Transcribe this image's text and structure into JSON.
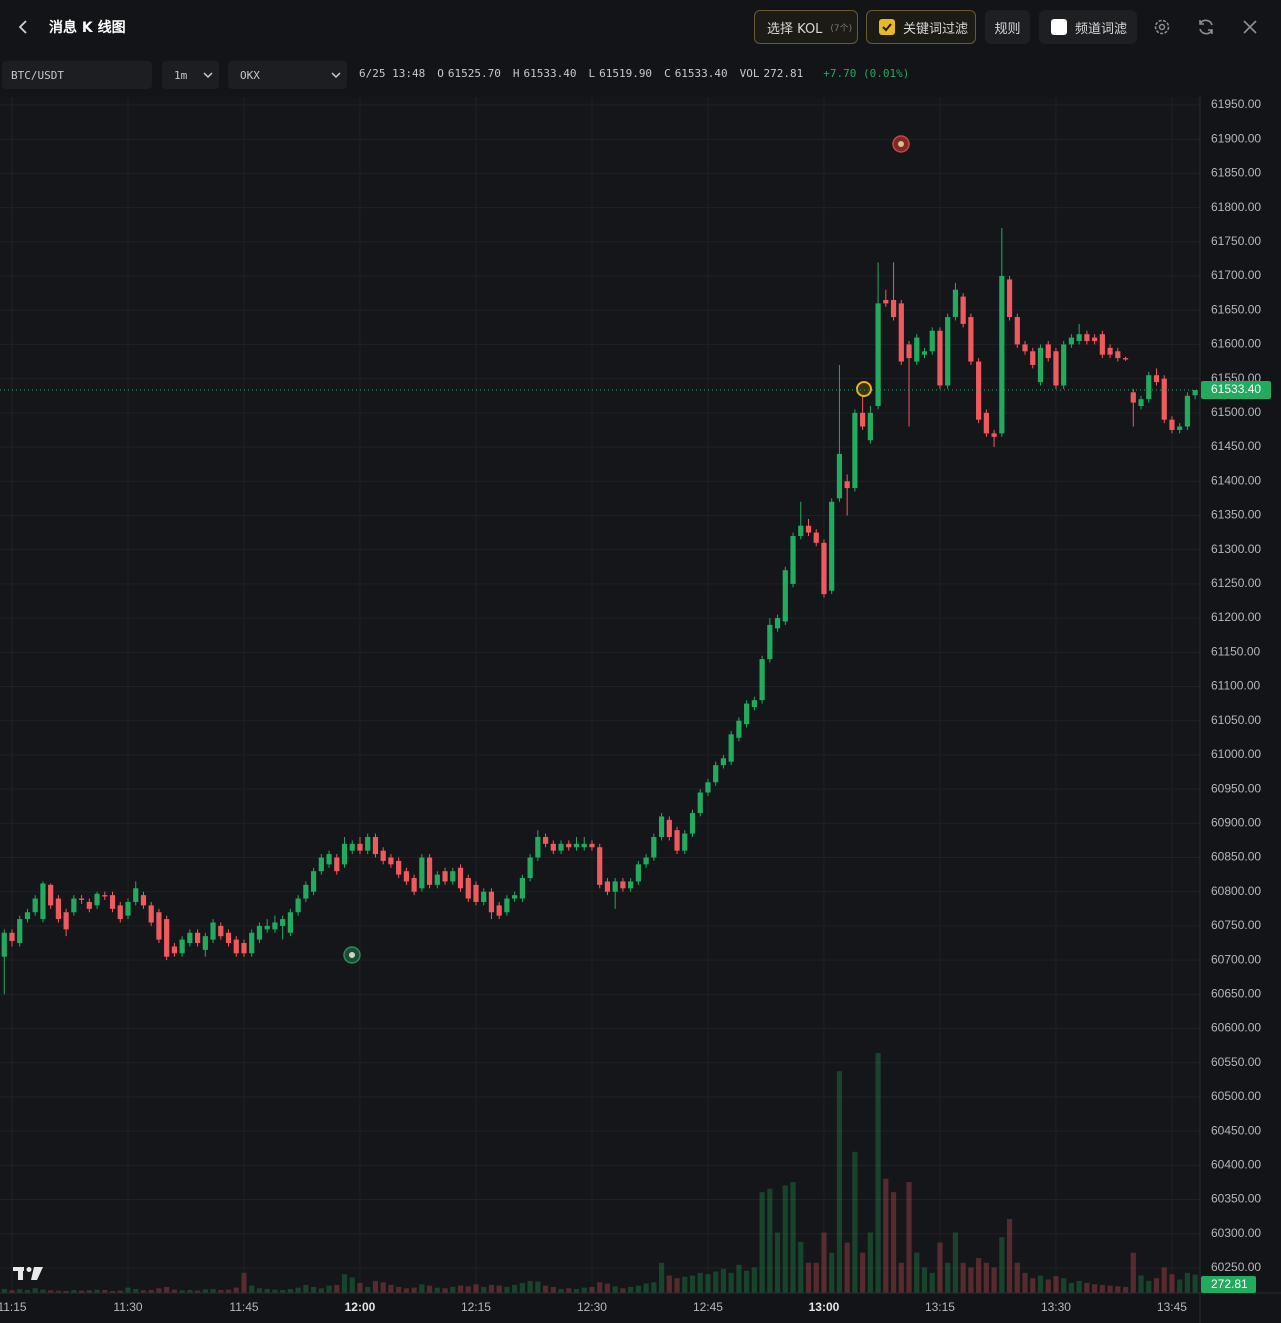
{
  "header": {
    "title": "消息 K 线图",
    "kol_button": "选择 KOL",
    "kol_count": "(7个)",
    "keyword_filter": "关键词过滤",
    "rules": "规则",
    "channel_filter": "频道词滤"
  },
  "toolbar": {
    "symbol": "BTC/USDT",
    "interval": "1m",
    "exchange": "OKX",
    "datetime": "6/25 13:48",
    "ohlc": [
      {
        "label": "O",
        "value": "61525.70"
      },
      {
        "label": "H",
        "value": "61533.40"
      },
      {
        "label": "L",
        "value": "61519.90"
      },
      {
        "label": "C",
        "value": "61533.40"
      },
      {
        "label": "VOL",
        "value": "272.81"
      }
    ],
    "change": "+7.70 (0.01%)"
  },
  "chart_data": {
    "type": "candlestick",
    "up_color": "#22ab5e",
    "down_color": "#ef5a5f",
    "grid": true,
    "x": [
      "11:14",
      "11:15",
      "11:16",
      "11:17",
      "11:18",
      "11:19",
      "11:20",
      "11:21",
      "11:22",
      "11:23",
      "11:24",
      "11:25",
      "11:26",
      "11:27",
      "11:28",
      "11:29",
      "11:30",
      "11:31",
      "11:32",
      "11:33",
      "11:34",
      "11:35",
      "11:36",
      "11:37",
      "11:38",
      "11:39",
      "11:40",
      "11:41",
      "11:42",
      "11:43",
      "11:44",
      "11:45",
      "11:46",
      "11:47",
      "11:48",
      "11:49",
      "11:50",
      "11:51",
      "11:52",
      "11:53",
      "11:54",
      "11:55",
      "11:56",
      "11:57",
      "11:58",
      "11:59",
      "12:00",
      "12:01",
      "12:02",
      "12:03",
      "12:04",
      "12:05",
      "12:06",
      "12:07",
      "12:08",
      "12:09",
      "12:10",
      "12:11",
      "12:12",
      "12:13",
      "12:14",
      "12:15",
      "12:16",
      "12:17",
      "12:18",
      "12:19",
      "12:20",
      "12:21",
      "12:22",
      "12:23",
      "12:24",
      "12:25",
      "12:26",
      "12:27",
      "12:28",
      "12:29",
      "12:30",
      "12:31",
      "12:32",
      "12:33",
      "12:34",
      "12:35",
      "12:36",
      "12:37",
      "12:38",
      "12:39",
      "12:40",
      "12:41",
      "12:42",
      "12:43",
      "12:44",
      "12:45",
      "12:46",
      "12:47",
      "12:48",
      "12:49",
      "12:50",
      "12:51",
      "12:52",
      "12:53",
      "12:54",
      "12:55",
      "12:56",
      "12:57",
      "12:58",
      "12:59",
      "13:00",
      "13:01",
      "13:02",
      "13:03",
      "13:04",
      "13:05",
      "13:06",
      "13:07",
      "13:08",
      "13:09",
      "13:10",
      "13:11",
      "13:12",
      "13:13",
      "13:14",
      "13:15",
      "13:16",
      "13:17",
      "13:18",
      "13:19",
      "13:20",
      "13:21",
      "13:22",
      "13:23",
      "13:24",
      "13:25",
      "13:26",
      "13:27",
      "13:28",
      "13:29",
      "13:30",
      "13:31",
      "13:32",
      "13:33",
      "13:34",
      "13:35",
      "13:36",
      "13:37",
      "13:38",
      "13:39",
      "13:40",
      "13:41",
      "13:42",
      "13:43",
      "13:44",
      "13:45",
      "13:46",
      "13:47",
      "13:48"
    ],
    "open": [
      60705,
      60740,
      60725,
      60760,
      60770,
      60760,
      60810,
      60790,
      60770,
      60770,
      60790,
      60785,
      60780,
      60795,
      60795,
      60780,
      60765,
      60785,
      60795,
      60780,
      60770,
      60760,
      60720,
      60710,
      60725,
      60740,
      60715,
      60730,
      60750,
      60740,
      60730,
      60725,
      60710,
      60730,
      60745,
      60745,
      60750,
      60740,
      60770,
      60790,
      60800,
      60830,
      60840,
      60850,
      60840,
      60860,
      60870,
      60860,
      60880,
      60860,
      60850,
      60845,
      60830,
      60820,
      60805,
      60850,
      60810,
      60830,
      60815,
      60835,
      60820,
      60810,
      60785,
      60800,
      60780,
      60770,
      60790,
      60790,
      60820,
      60850,
      60880,
      60870,
      60860,
      60870,
      60865,
      60865,
      60870,
      60865,
      60815,
      60800,
      60815,
      60805,
      60815,
      60840,
      60850,
      60880,
      60905,
      60890,
      60860,
      60885,
      60915,
      60945,
      60960,
      60985,
      60990,
      61025,
      61045,
      61070,
      61080,
      61140,
      61185,
      61195,
      61250,
      61320,
      61335,
      61325,
      61310,
      61240,
      61375,
      61400,
      61390,
      61500,
      61460,
      61510,
      61665,
      61665,
      61660,
      61600,
      61575,
      61585,
      61590,
      61620,
      61540,
      61640,
      61670,
      61640,
      61575,
      61500,
      61470,
      61470,
      61695,
      61640,
      61600,
      61590,
      61545,
      61600,
      61590,
      61540,
      61600,
      61605,
      61615,
      61610,
      61615,
      61595,
      61590,
      61580,
      61530,
      61510,
      61520,
      61555,
      61550,
      61490,
      61475,
      61480,
      61525.7
    ],
    "high": [
      60745,
      60745,
      60765,
      60775,
      60795,
      60815,
      60812,
      60795,
      60775,
      60795,
      60795,
      60790,
      60800,
      60800,
      60800,
      60785,
      60790,
      60815,
      60800,
      60785,
      60775,
      60765,
      60725,
      60735,
      60745,
      60745,
      60740,
      60760,
      60755,
      60745,
      60735,
      60730,
      60745,
      60755,
      60760,
      60765,
      60765,
      60775,
      60795,
      60815,
      60835,
      60855,
      60860,
      60855,
      60880,
      60875,
      60880,
      60885,
      60885,
      60865,
      60855,
      60850,
      60835,
      60825,
      60855,
      60855,
      60830,
      60835,
      60835,
      60840,
      60825,
      60815,
      60805,
      60805,
      60785,
      60795,
      60800,
      60825,
      60855,
      60890,
      60885,
      60875,
      60875,
      60875,
      60880,
      60880,
      60875,
      60870,
      60820,
      60820,
      60820,
      60820,
      60845,
      60855,
      60885,
      60915,
      60910,
      60895,
      60890,
      60920,
      60950,
      60965,
      60990,
      61000,
      61035,
      61055,
      61080,
      61085,
      61145,
      61200,
      61205,
      61275,
      61325,
      61370,
      61345,
      61330,
      61315,
      61375,
      61570,
      61410,
      61505,
      61530,
      61510,
      61720,
      61680,
      61720,
      61665,
      61605,
      61615,
      61595,
      61625,
      61625,
      61645,
      61690,
      61675,
      61645,
      61580,
      61505,
      61475,
      61770,
      61700,
      61645,
      61605,
      61595,
      61600,
      61605,
      61595,
      61605,
      61615,
      61630,
      61620,
      61615,
      61620,
      61600,
      61595,
      61582,
      61535,
      61525,
      61560,
      61565,
      61555,
      61495,
      61485,
      61530,
      61533.4
    ],
    "low": [
      60650,
      60720,
      60720,
      60755,
      60765,
      60755,
      60775,
      60755,
      60735,
      60765,
      60782,
      60770,
      60775,
      60788,
      60770,
      60755,
      60760,
      60780,
      60775,
      60750,
      60725,
      60700,
      60705,
      60705,
      60720,
      60720,
      60705,
      60725,
      60730,
      60720,
      60705,
      60705,
      60705,
      60725,
      60740,
      60740,
      60730,
      60735,
      60765,
      60785,
      60795,
      60825,
      60835,
      60825,
      60835,
      60855,
      60855,
      60855,
      60850,
      60840,
      60835,
      60820,
      60810,
      60795,
      60800,
      60805,
      60805,
      60810,
      60810,
      60800,
      60785,
      60780,
      60780,
      60760,
      60760,
      60765,
      60785,
      60785,
      60815,
      60845,
      60865,
      60855,
      60855,
      60860,
      60860,
      60860,
      60860,
      60805,
      60795,
      60775,
      60800,
      60800,
      60810,
      60835,
      60845,
      60875,
      60875,
      60855,
      60855,
      60880,
      60910,
      60940,
      60955,
      60980,
      60985,
      61020,
      61040,
      61065,
      61075,
      61135,
      61180,
      61190,
      61245,
      61315,
      61320,
      61305,
      61230,
      61235,
      61370,
      61350,
      61385,
      61475,
      61455,
      61505,
      61655,
      61635,
      61570,
      61480,
      61570,
      61580,
      61585,
      61535,
      61535,
      61635,
      61625,
      61570,
      61485,
      61465,
      61450,
      61465,
      61635,
      61595,
      61585,
      61565,
      61540,
      61575,
      61535,
      61535,
      61595,
      61600,
      61600,
      61600,
      61580,
      61580,
      61575,
      61576,
      61480,
      61505,
      61515,
      61540,
      61485,
      61470,
      61470,
      61475,
      61519.9
    ],
    "close": [
      60740,
      60728,
      60760,
      60770,
      60790,
      60812,
      60780,
      60760,
      60745,
      60790,
      60788,
      60775,
      60797,
      60793,
      60775,
      60760,
      60785,
      60805,
      60780,
      60755,
      60730,
      60705,
      60710,
      60730,
      60740,
      60725,
      60735,
      60755,
      60735,
      60725,
      60710,
      60710,
      60740,
      60750,
      60750,
      60755,
      60760,
      60770,
      60790,
      60810,
      60830,
      60850,
      60855,
      60830,
      60870,
      60870,
      60860,
      60880,
      60855,
      60845,
      60840,
      60825,
      60815,
      60800,
      60850,
      60810,
      60825,
      60815,
      60830,
      60805,
      60790,
      60785,
      60800,
      60770,
      60765,
      60790,
      60795,
      60820,
      60850,
      60880,
      60870,
      60860,
      60870,
      60865,
      60870,
      60870,
      60865,
      60810,
      60800,
      60815,
      60805,
      60815,
      60840,
      60850,
      60880,
      60910,
      60880,
      60860,
      60885,
      60915,
      60945,
      60960,
      60985,
      60995,
      61030,
      61050,
      61075,
      61080,
      61140,
      61190,
      61200,
      61270,
      61320,
      61335,
      61325,
      61310,
      61235,
      61370,
      61440,
      61390,
      61500,
      61480,
      61500,
      61660,
      61660,
      61640,
      61575,
      61580,
      61610,
      61590,
      61620,
      61540,
      61640,
      61680,
      61630,
      61575,
      61490,
      61470,
      61465,
      61700,
      61640,
      61600,
      61590,
      61570,
      61595,
      61580,
      61540,
      61600,
      61610,
      61615,
      61605,
      61605,
      61585,
      61585,
      61580,
      61578,
      61515,
      61520,
      61555,
      61545,
      61490,
      61475,
      61480,
      61525,
      61533.4
    ],
    "volume": [
      60,
      40,
      55,
      45,
      70,
      50,
      40,
      35,
      30,
      45,
      35,
      40,
      50,
      45,
      30,
      35,
      80,
      60,
      40,
      45,
      70,
      90,
      50,
      40,
      45,
      35,
      55,
      60,
      45,
      50,
      80,
      300,
      110,
      70,
      60,
      50,
      45,
      60,
      80,
      120,
      90,
      70,
      110,
      120,
      280,
      230,
      150,
      90,
      180,
      160,
      120,
      90,
      70,
      80,
      130,
      110,
      80,
      70,
      90,
      110,
      100,
      130,
      90,
      120,
      110,
      90,
      120,
      150,
      180,
      170,
      110,
      90,
      60,
      70,
      60,
      80,
      90,
      160,
      140,
      100,
      70,
      90,
      110,
      140,
      160,
      450,
      260,
      220,
      240,
      260,
      300,
      280,
      320,
      360,
      300,
      420,
      330,
      380,
      1500,
      1550,
      900,
      1600,
      1650,
      760,
      450,
      450,
      900,
      600,
      3300,
      750,
      2100,
      600,
      900,
      3570,
      1700,
      1500,
      450,
      1650,
      600,
      380,
      300,
      750,
      450,
      900,
      450,
      380,
      520,
      450,
      380,
      830,
      1100,
      450,
      300,
      220,
      260,
      200,
      250,
      220,
      150,
      180,
      150,
      130,
      120,
      110,
      100,
      90,
      600,
      260,
      180,
      220,
      380,
      280,
      200,
      300,
      272.81
    ],
    "ylim": [
      60213.4,
      61961.7
    ],
    "yticks": [
      {
        "value": 60250,
        "label": "60250.00"
      },
      {
        "value": 60300,
        "label": "60300.00"
      },
      {
        "value": 60350,
        "label": "60350.00"
      },
      {
        "value": 60400,
        "label": "60400.00"
      },
      {
        "value": 60450,
        "label": "60450.00"
      },
      {
        "value": 60500,
        "label": "60500.00"
      },
      {
        "value": 60550,
        "label": "60550.00"
      },
      {
        "value": 60600,
        "label": "60600.00"
      },
      {
        "value": 60650,
        "label": "60650.00"
      },
      {
        "value": 60700,
        "label": "60700.00"
      },
      {
        "value": 60750,
        "label": "60750.00"
      },
      {
        "value": 60800,
        "label": "60800.00"
      },
      {
        "value": 60850,
        "label": "60850.00"
      },
      {
        "value": 60900,
        "label": "60900.00"
      },
      {
        "value": 60950,
        "label": "60950.00"
      },
      {
        "value": 61000,
        "label": "61000.00"
      },
      {
        "value": 61050,
        "label": "61050.00"
      },
      {
        "value": 61100,
        "label": "61100.00"
      },
      {
        "value": 61150,
        "label": "61150.00"
      },
      {
        "value": 61200,
        "label": "61200.00"
      },
      {
        "value": 61250,
        "label": "61250.00"
      },
      {
        "value": 61300,
        "label": "61300.00"
      },
      {
        "value": 61350,
        "label": "61350.00"
      },
      {
        "value": 61400,
        "label": "61400.00"
      },
      {
        "value": 61450,
        "label": "61450.00"
      },
      {
        "value": 61500,
        "label": "61500.00"
      },
      {
        "value": 61550,
        "label": "61550.00"
      },
      {
        "value": 61600,
        "label": "61600.00"
      },
      {
        "value": 61650,
        "label": "61650.00"
      },
      {
        "value": 61700,
        "label": "61700.00"
      },
      {
        "value": 61750,
        "label": "61750.00"
      },
      {
        "value": 61800,
        "label": "61800.00"
      },
      {
        "value": 61850,
        "label": "61850.00"
      },
      {
        "value": 61900,
        "label": "61900.00"
      },
      {
        "value": 61950,
        "label": "61950.00"
      }
    ],
    "xticks": [
      "11:15",
      "11:30",
      "11:45",
      "12:00",
      "12:15",
      "12:30",
      "12:45",
      "13:00",
      "13:15",
      "13:30",
      "13:45"
    ],
    "last_price_label": "61533.40"
  }
}
